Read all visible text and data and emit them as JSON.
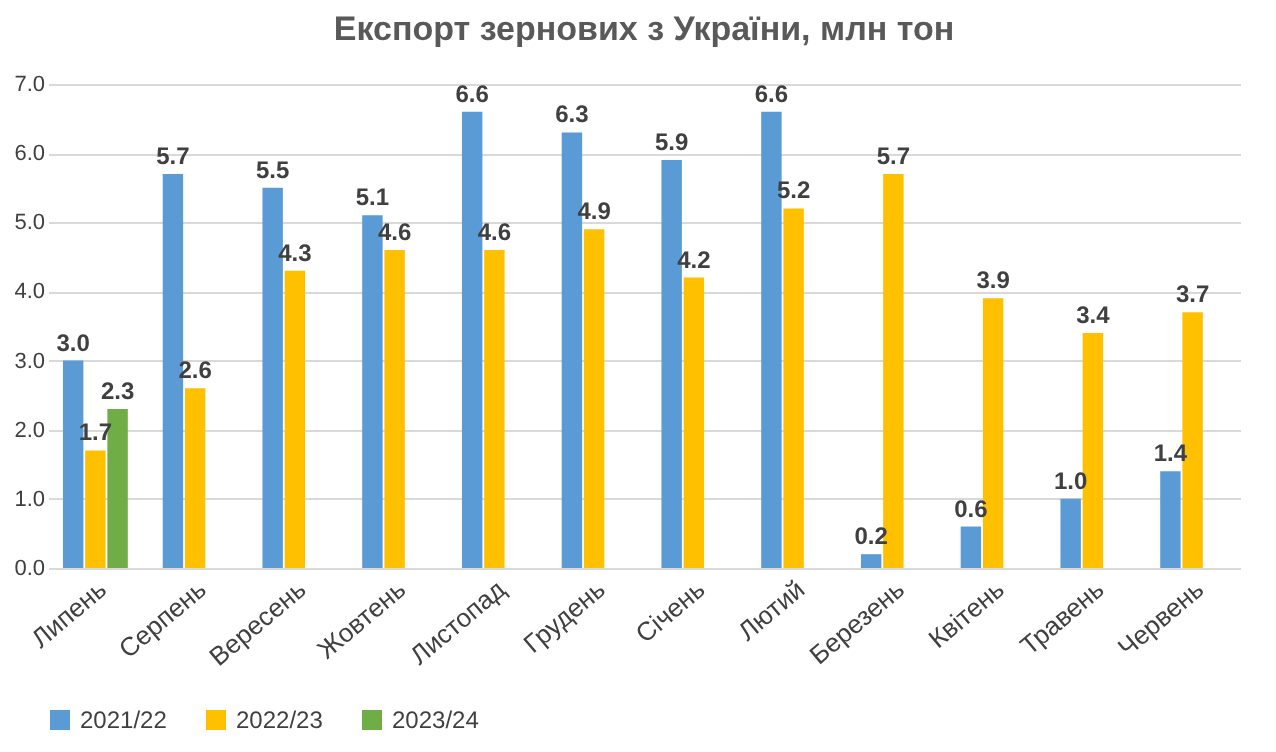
{
  "chart_data": {
    "type": "bar",
    "title": "Експорт зернових з України, млн тон",
    "categories": [
      "Липень",
      "Серпень",
      "Вересень",
      "Жовтень",
      "Листопад",
      "Грудень",
      "Січень",
      "Лютий",
      "Березень",
      "Квітень",
      "Травень",
      "Червень"
    ],
    "series": [
      {
        "name": "2021/22",
        "color": "#5b9bd5",
        "values": [
          3.0,
          5.7,
          5.5,
          5.1,
          6.6,
          6.3,
          5.9,
          6.6,
          0.2,
          0.6,
          1.0,
          1.4
        ],
        "value_labels": [
          "3.0",
          "5.7",
          "5.5",
          "5.1",
          "6.6",
          "6.3",
          "5.9",
          "6.6",
          "0.2",
          "0.6",
          "1.0",
          "1.4"
        ]
      },
      {
        "name": "2022/23",
        "color": "#ffc000",
        "values": [
          1.7,
          2.6,
          4.3,
          4.6,
          4.6,
          4.9,
          4.2,
          5.2,
          5.7,
          3.9,
          3.4,
          3.7
        ],
        "value_labels": [
          "1.7",
          "2.6",
          "4.3",
          "4.6",
          "4.6",
          "4.9",
          "4.2",
          "5.2",
          "5.7",
          "3.9",
          "3.4",
          "3.7"
        ]
      },
      {
        "name": "2023/24",
        "color": "#70ad47",
        "values": [
          2.3,
          null,
          null,
          null,
          null,
          null,
          null,
          null,
          null,
          null,
          null,
          null
        ],
        "value_labels": [
          "2.3",
          null,
          null,
          null,
          null,
          null,
          null,
          null,
          null,
          null,
          null,
          null
        ]
      }
    ],
    "ylim": [
      0,
      7
    ],
    "yticks": [
      {
        "value": 0,
        "label": "0.0"
      },
      {
        "value": 1,
        "label": "1.0"
      },
      {
        "value": 2,
        "label": "2.0"
      },
      {
        "value": 3,
        "label": "3.0"
      },
      {
        "value": 4,
        "label": "4.0"
      },
      {
        "value": 5,
        "label": "5.0"
      },
      {
        "value": 6,
        "label": "6.0"
      },
      {
        "value": 7,
        "label": "7.0"
      }
    ],
    "grid": "y",
    "legend": "bottom"
  }
}
